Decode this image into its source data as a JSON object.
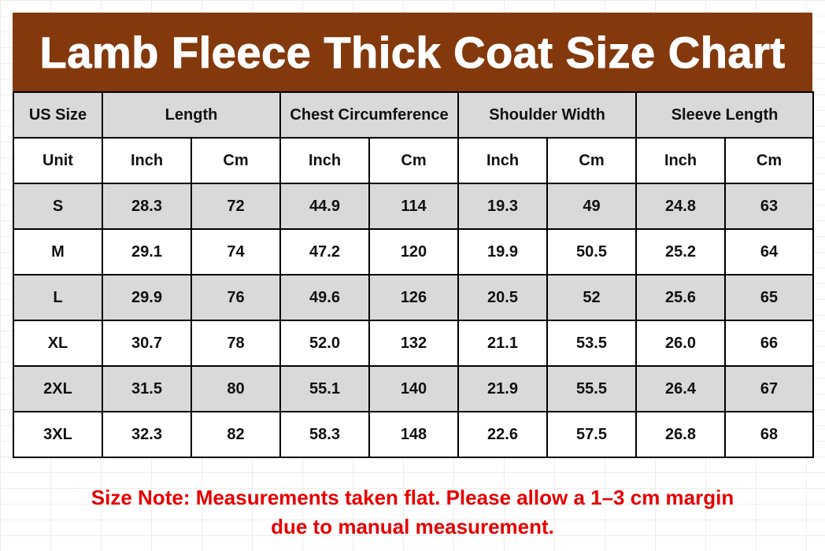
{
  "title": "Lamb Fleece Thick Coat Size Chart",
  "header": {
    "us_size": "US Size",
    "groups": [
      "Length",
      "Chest Circumference",
      "Shoulder Width",
      "Sleeve Length"
    ]
  },
  "units_row": [
    "Unit",
    "Inch",
    "Cm",
    "Inch",
    "Cm",
    "Inch",
    "Cm",
    "Inch",
    "Cm"
  ],
  "rows": [
    [
      "S",
      "28.3",
      "72",
      "44.9",
      "114",
      "19.3",
      "49",
      "24.8",
      "63"
    ],
    [
      "M",
      "29.1",
      "74",
      "47.2",
      "120",
      "19.9",
      "50.5",
      "25.2",
      "64"
    ],
    [
      "L",
      "29.9",
      "76",
      "49.6",
      "126",
      "20.5",
      "52",
      "25.6",
      "65"
    ],
    [
      "XL",
      "30.7",
      "78",
      "52.0",
      "132",
      "21.1",
      "53.5",
      "26.0",
      "66"
    ],
    [
      "2XL",
      "31.5",
      "80",
      "55.1",
      "140",
      "21.9",
      "55.5",
      "26.4",
      "67"
    ],
    [
      "3XL",
      "32.3",
      "82",
      "58.3",
      "148",
      "22.6",
      "57.5",
      "26.8",
      "68"
    ]
  ],
  "note": {
    "line1": "Size Note: Measurements taken flat. Please allow a 1–3 cm margin",
    "line2": "due to manual measurement."
  },
  "colors": {
    "title_bg": "#84390d",
    "shaded_row": "#d9d9d9",
    "note_text": "#e60000"
  }
}
